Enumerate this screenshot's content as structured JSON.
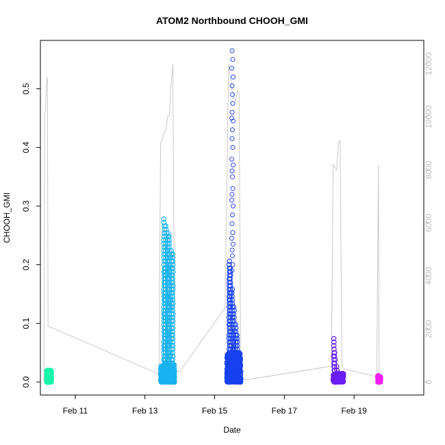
{
  "chart_data": {
    "type": "scatter",
    "title": "ATOM2 Northbound CHOOH_GMI",
    "xlabel": "Date",
    "ylabel": "CHOOH_GMI",
    "x_ticks": [
      "Feb 11",
      "Feb 13",
      "Feb 15",
      "Feb 17",
      "Feb 19"
    ],
    "x_tick_values": [
      11,
      13,
      15,
      17,
      19
    ],
    "xlim": [
      10.0,
      21.0
    ],
    "y_ticks": [
      "0.0",
      "0.1",
      "0.2",
      "0.3",
      "0.4",
      "0.5"
    ],
    "y_tick_values": [
      0,
      0.1,
      0.2,
      0.3,
      0.4,
      0.5
    ],
    "ylim": [
      0,
      0.565
    ],
    "y2_ticks": [
      "0",
      "2000",
      "4000",
      "6000",
      "8000",
      "10000",
      "12000"
    ],
    "y2_tick_values": [
      0,
      2000,
      4000,
      6000,
      8000,
      10000,
      12000
    ],
    "y2lim": [
      0,
      12500
    ],
    "colors": {
      "flight1": "#19f5a8",
      "flight2": "#1ab2f0",
      "flight3": "#1740f0",
      "flight4": "#6a1ef5",
      "flight5": "#f01ef0",
      "altitude_line": "#c8c8c8",
      "axis": "#000000",
      "right_axis": "#bdbdbd"
    },
    "flights": [
      {
        "x_range": [
          10.18,
          10.32
        ],
        "y_range": [
          0.0,
          0.02
        ],
        "color_key": "flight1",
        "n": 260
      },
      {
        "x_range": [
          13.45,
          13.85
        ],
        "y_range": [
          0.0,
          0.03
        ],
        "color_key": "flight2",
        "n": 320,
        "spikes": [
          [
            13.55,
            0.28
          ],
          [
            13.6,
            0.27
          ],
          [
            13.65,
            0.26
          ],
          [
            13.7,
            0.25
          ],
          [
            13.75,
            0.23
          ],
          [
            13.8,
            0.22
          ],
          [
            13.58,
            0.2
          ],
          [
            13.68,
            0.21
          ]
        ]
      },
      {
        "x_range": [
          15.35,
          15.75
        ],
        "y_range": [
          0.0,
          0.05
        ],
        "color_key": "flight3",
        "n": 380,
        "spikes": [
          [
            15.42,
            0.21
          ],
          [
            15.45,
            0.2
          ],
          [
            15.5,
            0.16
          ],
          [
            15.55,
            0.13
          ],
          [
            15.6,
            0.1
          ],
          [
            15.65,
            0.08
          ],
          [
            15.7,
            0.05
          ]
        ]
      },
      {
        "x_range": [
          18.4,
          18.7
        ],
        "y_range": [
          0.0,
          0.015
        ],
        "color_key": "flight4",
        "n": 220,
        "spikes": [
          [
            18.42,
            0.075
          ],
          [
            18.45,
            0.05
          ],
          [
            18.5,
            0.03
          ]
        ]
      },
      {
        "x_range": [
          19.68,
          19.76
        ],
        "y_range": [
          0.0,
          0.012
        ],
        "color_key": "flight5",
        "n": 80
      }
    ],
    "open_circles": {
      "color": "#2a45e8",
      "points": [
        [
          15.5,
          0.565
        ],
        [
          15.52,
          0.55
        ],
        [
          15.49,
          0.535
        ],
        [
          15.53,
          0.52
        ],
        [
          15.5,
          0.505
        ],
        [
          15.51,
          0.49
        ],
        [
          15.52,
          0.475
        ],
        [
          15.5,
          0.46
        ],
        [
          15.49,
          0.45
        ],
        [
          15.53,
          0.445
        ],
        [
          15.51,
          0.43
        ],
        [
          15.5,
          0.415
        ],
        [
          15.52,
          0.4
        ],
        [
          15.49,
          0.38
        ],
        [
          15.53,
          0.37
        ],
        [
          15.5,
          0.36
        ],
        [
          15.51,
          0.35
        ],
        [
          15.52,
          0.33
        ],
        [
          15.5,
          0.32
        ],
        [
          15.49,
          0.31
        ],
        [
          15.53,
          0.3
        ],
        [
          15.51,
          0.285
        ],
        [
          15.5,
          0.27
        ],
        [
          15.52,
          0.255
        ],
        [
          15.49,
          0.245
        ],
        [
          15.53,
          0.235
        ],
        [
          15.5,
          0.225
        ],
        [
          15.51,
          0.215
        ],
        [
          15.52,
          0.2
        ],
        [
          15.5,
          0.19
        ]
      ]
    },
    "altitude_trace": [
      [
        10.1,
        10
      ],
      [
        10.12,
        10150
      ],
      [
        10.14,
        10200
      ],
      [
        10.16,
        10800
      ],
      [
        10.18,
        11300
      ],
      [
        10.2,
        11500
      ],
      [
        10.22,
        2100
      ],
      [
        10.24,
        2100
      ],
      [
        13.4,
        300
      ],
      [
        13.45,
        9000
      ],
      [
        13.5,
        9200
      ],
      [
        13.55,
        9400
      ],
      [
        13.6,
        9500
      ],
      [
        13.65,
        10000
      ],
      [
        13.7,
        10050
      ],
      [
        13.75,
        11200
      ],
      [
        13.8,
        12000
      ],
      [
        13.85,
        400
      ],
      [
        14.0,
        400
      ],
      [
        15.3,
        2800
      ],
      [
        15.4,
        12000
      ],
      [
        15.45,
        11500
      ],
      [
        15.5,
        11000
      ],
      [
        15.55,
        10800
      ],
      [
        15.6,
        10600
      ],
      [
        15.65,
        11000
      ],
      [
        15.7,
        10900
      ],
      [
        15.75,
        100
      ],
      [
        16.0,
        100
      ],
      [
        18.35,
        600
      ],
      [
        18.4,
        8200
      ],
      [
        18.45,
        8100
      ],
      [
        18.5,
        8000
      ],
      [
        18.55,
        9000
      ],
      [
        18.6,
        9100
      ],
      [
        18.65,
        600
      ],
      [
        18.7,
        500
      ],
      [
        19.65,
        200
      ],
      [
        19.7,
        8200
      ],
      [
        19.72,
        200
      ]
    ]
  }
}
